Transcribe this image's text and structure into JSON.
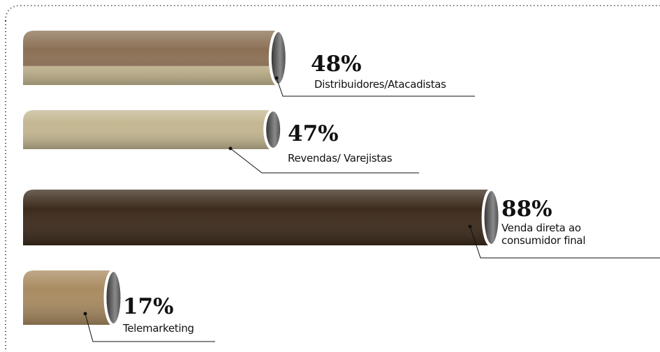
{
  "chart_data": {
    "type": "bar",
    "orientation": "horizontal",
    "categories": [
      "Distribuidores/Atacadistas",
      "Revendas/ Varejistas",
      "Venda direta ao consumidor final",
      "Telemarketing"
    ],
    "values": [
      48,
      47,
      88,
      17
    ],
    "value_labels": [
      "48%",
      "47%",
      "88%",
      "17%"
    ],
    "colors": [
      "#8b7055",
      "#c4b791",
      "#3d2b1c",
      "#a98b61"
    ]
  }
}
